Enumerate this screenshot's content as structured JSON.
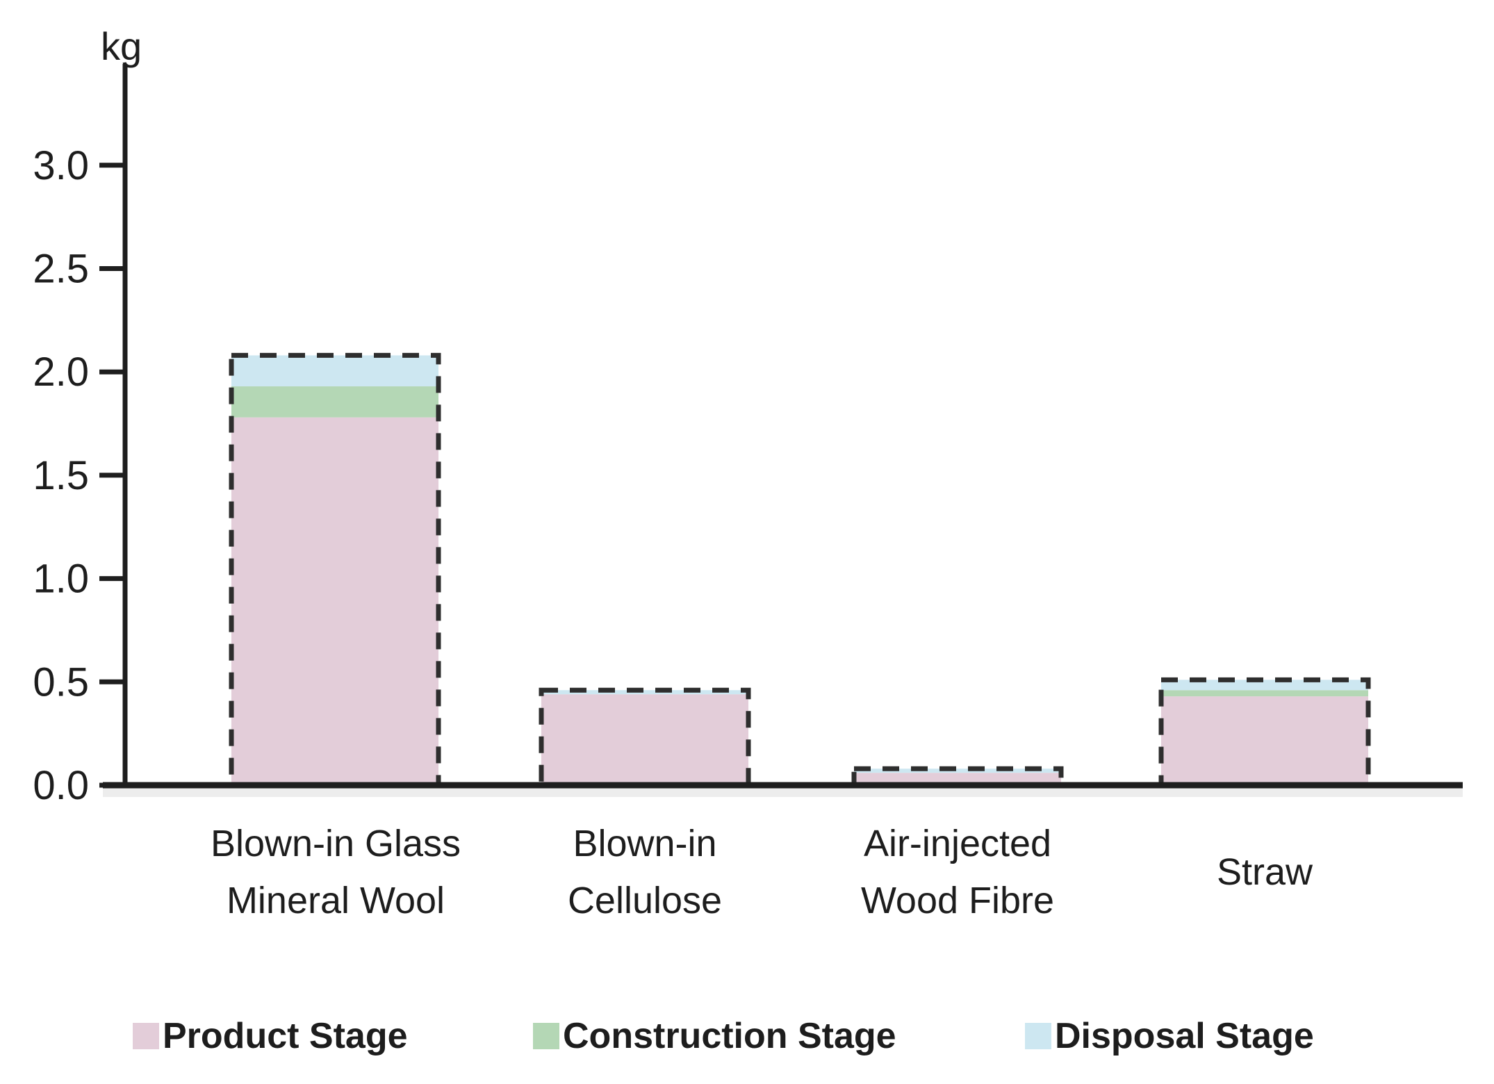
{
  "chart_data": {
    "type": "bar",
    "stacked": true,
    "title": "",
    "unit_label": "kg",
    "ylabel": "kg",
    "xlabel": "",
    "ylim": [
      0,
      3.3
    ],
    "yticks": [
      0.0,
      0.5,
      1.0,
      1.5,
      2.0,
      2.5,
      3.0
    ],
    "grid": false,
    "bar_outline_style": "dashed",
    "legend_position": "bottom",
    "categories": [
      "Blown-in Glass\nMineral Wool",
      "Blown-in\nCellulose",
      "Air-injected\nWood Fibre",
      "Straw"
    ],
    "series": [
      {
        "name": "Product Stage",
        "color": "#e3cdd9",
        "values": [
          1.78,
          0.44,
          0.06,
          0.43
        ]
      },
      {
        "name": "Construction Stage",
        "color": "#b4d7b5",
        "values": [
          0.15,
          0.0,
          0.0,
          0.03
        ]
      },
      {
        "name": "Disposal Stage",
        "color": "#cde7f1",
        "values": [
          0.15,
          0.02,
          0.02,
          0.05
        ]
      }
    ],
    "totals": [
      2.08,
      0.46,
      0.08,
      0.51
    ],
    "colors": {
      "ink": "#1e1e1e",
      "bar_outline": "#2e2e2e",
      "axis_shadow": "#ededed",
      "background": "#ffffff"
    }
  }
}
